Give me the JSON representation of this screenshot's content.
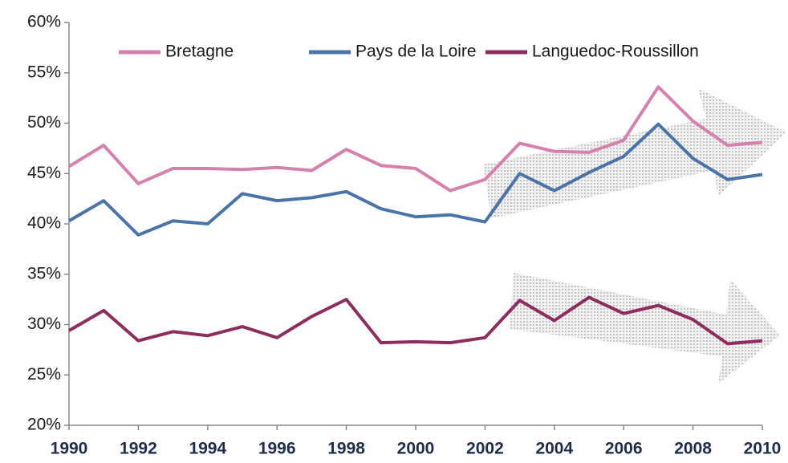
{
  "chart_data": {
    "type": "line",
    "x": [
      1990,
      1991,
      1992,
      1993,
      1994,
      1995,
      1996,
      1997,
      1998,
      1999,
      2000,
      2001,
      2002,
      2003,
      2004,
      2005,
      2006,
      2007,
      2008,
      2009,
      2010
    ],
    "series": [
      {
        "name": "Bretagne",
        "color": "#d580ad",
        "values": [
          45.7,
          47.8,
          44.0,
          45.5,
          45.5,
          45.4,
          45.6,
          45.3,
          47.4,
          45.8,
          45.5,
          43.3,
          44.4,
          48.0,
          47.2,
          47.1,
          48.3,
          53.6,
          50.2,
          47.8,
          48.1
        ]
      },
      {
        "name": "Pays de la Loire",
        "color": "#4a74a8",
        "values": [
          40.3,
          42.3,
          38.9,
          40.3,
          40.0,
          43.0,
          42.3,
          42.6,
          43.2,
          41.5,
          40.7,
          40.9,
          40.2,
          45.0,
          43.3,
          45.1,
          46.7,
          49.9,
          46.5,
          44.4,
          44.9
        ]
      },
      {
        "name": "Languedoc-Roussillon",
        "color": "#8c2d5d",
        "values": [
          29.4,
          31.4,
          28.4,
          29.3,
          28.9,
          29.8,
          28.7,
          30.8,
          32.5,
          28.2,
          28.3,
          28.2,
          28.7,
          32.4,
          30.4,
          32.7,
          31.1,
          31.9,
          30.5,
          28.1,
          28.4
        ]
      }
    ],
    "xlim": [
      1990,
      2010
    ],
    "xticks": [
      1990,
      1992,
      1994,
      1996,
      1998,
      2000,
      2002,
      2004,
      2006,
      2008,
      2010
    ],
    "ylim": [
      20,
      60
    ],
    "yticks": [
      {
        "value": 20,
        "label": "20%"
      },
      {
        "value": 25,
        "label": "25%"
      },
      {
        "value": 30,
        "label": "30%"
      },
      {
        "value": 35,
        "label": "35%"
      },
      {
        "value": 40,
        "label": "40%"
      },
      {
        "value": 45,
        "label": "45%"
      },
      {
        "value": 50,
        "label": "50%"
      },
      {
        "value": 55,
        "label": "55%"
      },
      {
        "value": 60,
        "label": "60%"
      }
    ],
    "grid": false,
    "legend": "top"
  }
}
